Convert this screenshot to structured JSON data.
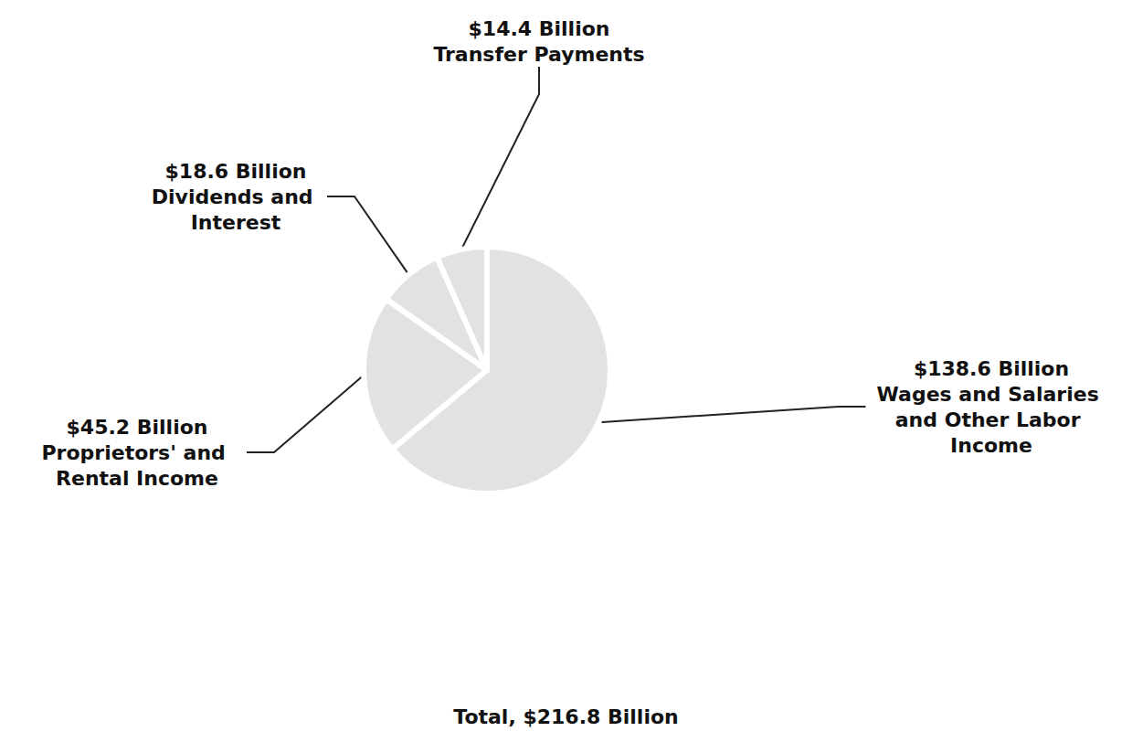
{
  "chart_data": {
    "type": "pie",
    "title": "Total, $216.8 Billion",
    "categories": [
      "Wages and Salaries and Other Labor Income",
      "Proprietors' and Rental Income",
      "Dividends and Interest",
      "Transfer Payments"
    ],
    "values": [
      138.6,
      45.2,
      18.6,
      14.4
    ],
    "value_labels": [
      "$138.6 Billion",
      "$45.2 Billion",
      "$18.6 Billion",
      "$14.4 Billion"
    ],
    "colors": [
      "#e2e2e2",
      "#e2e2e2",
      "#e2e2e2",
      "#e2e2e2"
    ],
    "data_labels": true
  }
}
